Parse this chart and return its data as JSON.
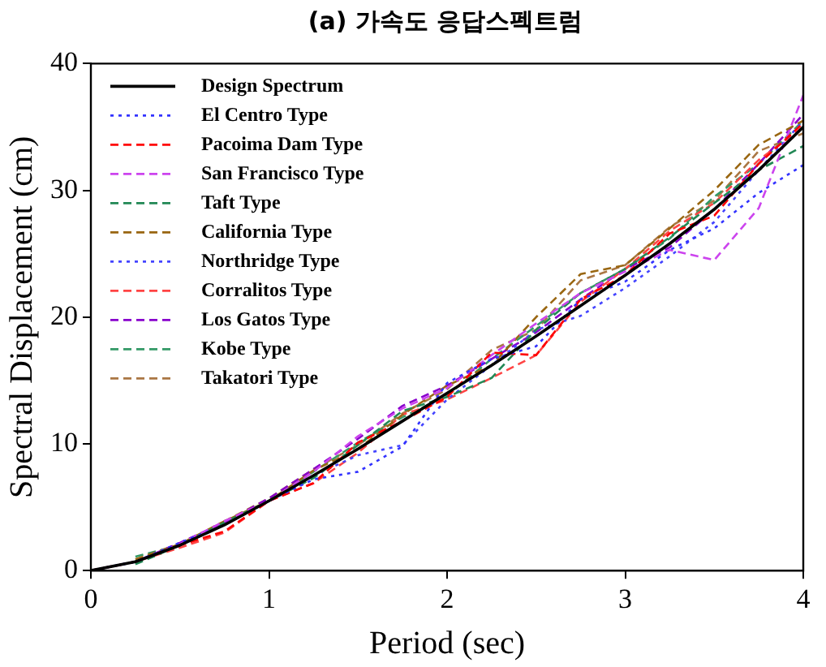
{
  "chart_data": {
    "type": "line",
    "title": "(a) 가속도 응답스펙트럼",
    "xlabel": "Period (sec)",
    "ylabel": "Spectral Displacement (cm)",
    "x": [
      0,
      0.25,
      0.5,
      0.75,
      1,
      1.25,
      1.5,
      1.75,
      2,
      2.25,
      2.5,
      2.75,
      3,
      3.25,
      3.5,
      3.75,
      4
    ],
    "xlim": [
      0,
      4
    ],
    "xticks": [
      0,
      1,
      2,
      3,
      4
    ],
    "ylim": [
      0,
      40
    ],
    "yticks": [
      0,
      10,
      20,
      30,
      40
    ],
    "grid": false,
    "legend": "top left",
    "marker": "none",
    "series": [
      {
        "name": "Design Spectrum",
        "color": "#000000",
        "line_style": "solid",
        "values": [
          0,
          0.7,
          2.0,
          3.6,
          5.5,
          7.5,
          9.6,
          11.8,
          14.0,
          16.2,
          18.5,
          20.9,
          23.3,
          25.8,
          28.5,
          31.6,
          35.0
        ]
      },
      {
        "name": "El Centro Type",
        "color": "#3333ff",
        "line_style": "dotted",
        "values": [
          0,
          0.7,
          2.2,
          3.6,
          5.5,
          7.2,
          7.8,
          9.8,
          14.8,
          16.7,
          17.7,
          21.4,
          22.8,
          25.3,
          27.0,
          29.8,
          32.0
        ]
      },
      {
        "name": "Pacoima Dam Type",
        "color": "#ff0000",
        "line_style": "dashed",
        "values": [
          0,
          0.7,
          2.0,
          3.1,
          5.5,
          6.9,
          10.1,
          11.8,
          13.7,
          17.2,
          17.0,
          21.4,
          23.3,
          26.6,
          28.0,
          32.1,
          35.3
        ]
      },
      {
        "name": "San Francisco Type",
        "color": "#cc44ee",
        "line_style": "dashed",
        "values": [
          0,
          0.7,
          2.1,
          3.9,
          5.5,
          7.8,
          10.6,
          12.8,
          14.4,
          17.0,
          19.5,
          21.9,
          23.6,
          25.3,
          24.5,
          28.6,
          37.5
        ]
      },
      {
        "name": "Taft Type",
        "color": "#228855",
        "line_style": "dashed",
        "values": [
          null,
          0.5,
          2.0,
          3.8,
          5.5,
          7.3,
          9.9,
          12.6,
          13.7,
          15.2,
          19.0,
          21.9,
          23.8,
          26.3,
          29.0,
          31.6,
          33.5
        ]
      },
      {
        "name": "California Type",
        "color": "#996611",
        "line_style": "dashed",
        "values": [
          null,
          0.9,
          2.1,
          3.9,
          5.5,
          7.9,
          9.6,
          12.3,
          14.6,
          16.2,
          20.0,
          23.4,
          24.1,
          27.0,
          30.0,
          33.6,
          35.5
        ]
      },
      {
        "name": "Northridge Type",
        "color": "#4444ff",
        "line_style": "dotted",
        "values": [
          0,
          0.7,
          2.0,
          3.6,
          5.5,
          7.5,
          9.1,
          9.9,
          13.5,
          16.2,
          19.0,
          20.1,
          22.3,
          24.8,
          27.5,
          31.6,
          35.5
        ]
      },
      {
        "name": "Corralitos Type",
        "color": "#ff4444",
        "line_style": "dashed",
        "values": [
          0,
          0.7,
          1.8,
          3.0,
          5.5,
          6.9,
          9.3,
          12.3,
          13.5,
          15.2,
          17.0,
          21.2,
          23.8,
          26.8,
          29.0,
          32.4,
          35.0
        ]
      },
      {
        "name": "Los Gatos Type",
        "color": "#8800cc",
        "line_style": "dashed",
        "values": [
          0,
          0.7,
          2.2,
          3.8,
          5.7,
          8.0,
          10.4,
          13.0,
          14.6,
          16.7,
          18.8,
          21.4,
          23.8,
          25.5,
          28.5,
          32.1,
          36.0
        ]
      },
      {
        "name": "Kobe Type",
        "color": "#339966",
        "line_style": "dashed",
        "values": [
          null,
          1.1,
          2.0,
          3.7,
          5.5,
          7.8,
          10.1,
          12.1,
          13.8,
          16.7,
          19.3,
          21.9,
          23.8,
          26.2,
          29.5,
          32.1,
          35.5
        ]
      },
      {
        "name": "Takatori Type",
        "color": "#aa7744",
        "line_style": "dashed",
        "values": [
          0,
          0.7,
          2.0,
          3.9,
          5.7,
          8.0,
          9.9,
          12.4,
          14.3,
          17.4,
          19.0,
          22.9,
          24.1,
          27.1,
          29.2,
          33.1,
          34.5
        ]
      }
    ]
  }
}
